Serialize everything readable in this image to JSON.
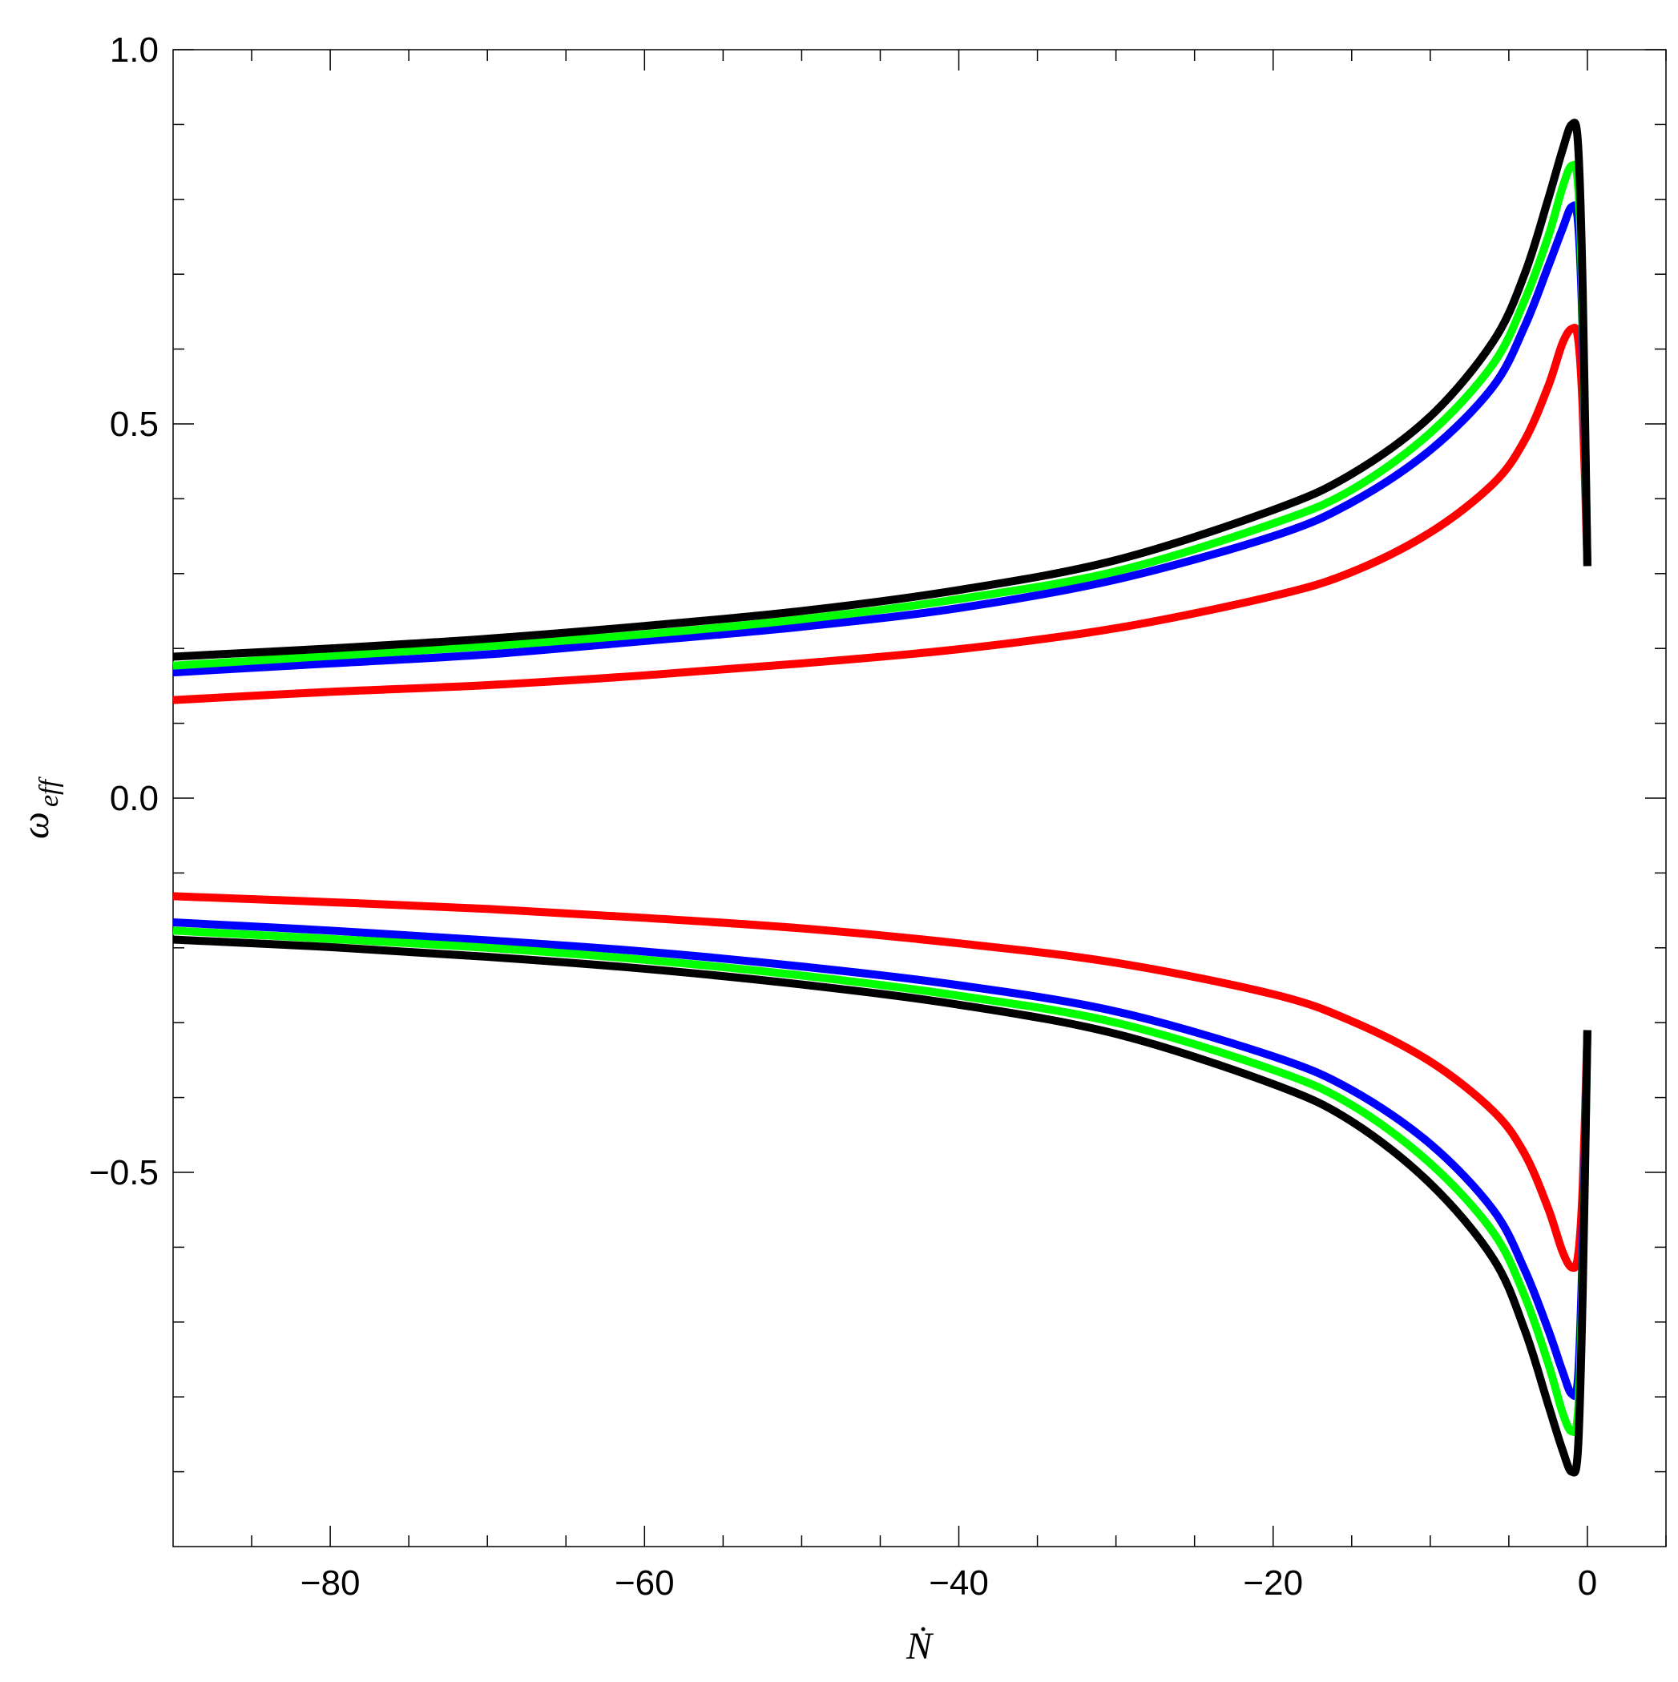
{
  "chart_data": {
    "type": "line",
    "title": "",
    "xlabel": "Ṅ",
    "ylabel": "ω",
    "ylabel_subscript": "eff",
    "xlim": [
      -90,
      5
    ],
    "ylim": [
      -1.0,
      1.0
    ],
    "x_ticks": [
      -80,
      -60,
      -40,
      -20,
      0
    ],
    "x_tick_labels": [
      "−80",
      "−60",
      "−40",
      "−20",
      "0"
    ],
    "y_ticks": [
      -0.5,
      0.0,
      0.5,
      1.0
    ],
    "y_tick_labels": [
      "−0.5",
      "0.0",
      "0.5",
      "1.0"
    ],
    "grid": false,
    "legend": "none",
    "series": [
      {
        "color": "#ff0000",
        "branches": [
          {
            "x": [
              -90,
              -80,
              -70,
              -60,
              -50,
              -40,
              -30,
              -20,
              -15,
              -10,
              -6,
              -4,
              -2.5,
              -1.6,
              -1.0,
              -0.6,
              -0.3,
              0
            ],
            "y": [
              0.131,
              0.142,
              0.151,
              0.164,
              0.18,
              0.199,
              0.227,
              0.27,
              0.302,
              0.355,
              0.42,
              0.478,
              0.55,
              0.607,
              0.627,
              0.615,
              0.52,
              0.31
            ]
          },
          {
            "x": [
              -90,
              -80,
              -70,
              -60,
              -50,
              -40,
              -30,
              -20,
              -15,
              -10,
              -6,
              -4,
              -2.5,
              -1.6,
              -1.0,
              -0.6,
              -0.3,
              0
            ],
            "y": [
              -0.131,
              -0.139,
              -0.148,
              -0.16,
              -0.174,
              -0.194,
              -0.22,
              -0.262,
              -0.298,
              -0.352,
              -0.418,
              -0.475,
              -0.548,
              -0.605,
              -0.627,
              -0.612,
              -0.52,
              -0.31
            ]
          }
        ]
      },
      {
        "color": "#0000ff",
        "branches": [
          {
            "x": [
              -90,
              -80,
              -70,
              -60,
              -50,
              -40,
              -30,
              -20,
              -15,
              -10,
              -6,
              -4,
              -2.5,
              -1.6,
              -1.0,
              -0.6,
              -0.3,
              0
            ],
            "y": [
              0.168,
              0.18,
              0.192,
              0.21,
              0.229,
              0.254,
              0.292,
              0.35,
              0.395,
              0.465,
              0.55,
              0.63,
              0.71,
              0.76,
              0.79,
              0.77,
              0.62,
              0.31
            ]
          },
          {
            "x": [
              -90,
              -80,
              -70,
              -60,
              -50,
              -40,
              -30,
              -20,
              -15,
              -10,
              -6,
              -4,
              -2.5,
              -1.6,
              -1.0,
              -0.6,
              -0.3,
              0
            ],
            "y": [
              -0.166,
              -0.177,
              -0.19,
              -0.205,
              -0.225,
              -0.25,
              -0.285,
              -0.345,
              -0.39,
              -0.462,
              -0.55,
              -0.63,
              -0.71,
              -0.765,
              -0.796,
              -0.775,
              -0.6,
              -0.31
            ]
          }
        ]
      },
      {
        "color": "#00ff00",
        "branches": [
          {
            "x": [
              -90,
              -80,
              -70,
              -60,
              -50,
              -40,
              -30,
              -20,
              -15,
              -10,
              -6,
              -4,
              -2.5,
              -1.6,
              -1.0,
              -0.6,
              -0.3,
              0
            ],
            "y": [
              0.177,
              0.19,
              0.203,
              0.219,
              0.239,
              0.266,
              0.303,
              0.367,
              0.412,
              0.488,
              0.58,
              0.665,
              0.75,
              0.815,
              0.845,
              0.82,
              0.65,
              0.31
            ]
          },
          {
            "x": [
              -90,
              -80,
              -70,
              -60,
              -50,
              -40,
              -30,
              -20,
              -15,
              -10,
              -6,
              -4,
              -2.5,
              -1.6,
              -1.0,
              -0.6,
              -0.3,
              0
            ],
            "y": [
              -0.177,
              -0.188,
              -0.2,
              -0.216,
              -0.237,
              -0.264,
              -0.3,
              -0.363,
              -0.41,
              -0.488,
              -0.58,
              -0.665,
              -0.755,
              -0.82,
              -0.846,
              -0.82,
              -0.64,
              -0.31
            ]
          }
        ]
      },
      {
        "color": "#000000",
        "branches": [
          {
            "x": [
              -90,
              -80,
              -70,
              -60,
              -50,
              -40,
              -30,
              -20,
              -15,
              -10,
              -6,
              -4,
              -2.5,
              -1.6,
              -1.0,
              -0.6,
              -0.3,
              0
            ],
            "y": [
              0.189,
              0.2,
              0.213,
              0.23,
              0.25,
              0.278,
              0.318,
              0.385,
              0.433,
              0.51,
              0.61,
              0.7,
              0.8,
              0.865,
              0.9,
              0.875,
              0.68,
              0.31
            ]
          },
          {
            "x": [
              -90,
              -80,
              -70,
              -60,
              -50,
              -40,
              -30,
              -20,
              -15,
              -10,
              -6,
              -4,
              -2.5,
              -1.6,
              -1.0,
              -0.6,
              -0.3,
              0
            ],
            "y": [
              -0.189,
              -0.199,
              -0.212,
              -0.228,
              -0.249,
              -0.276,
              -0.315,
              -0.382,
              -0.432,
              -0.515,
              -0.615,
              -0.71,
              -0.81,
              -0.87,
              -0.9,
              -0.87,
              -0.66,
              -0.31
            ]
          }
        ]
      }
    ]
  }
}
